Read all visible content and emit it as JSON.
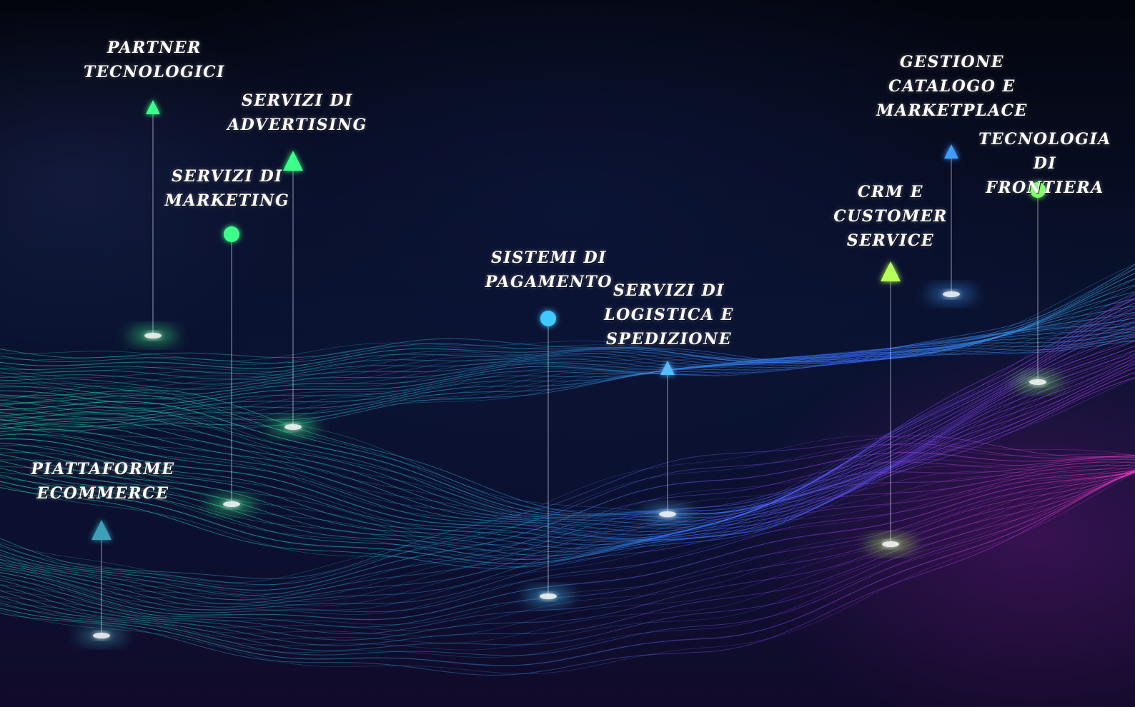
{
  "colors": {
    "green": "#3dff8a",
    "blue": "#3fb2ff",
    "lime": "#b6ff5a",
    "orange": "#ffb347",
    "magenta": "#c23cff",
    "teal": "#2ad6b8"
  },
  "markers": [
    {
      "key": "partner",
      "label": "PARTNER\nTECNOLOGICI",
      "icon": "arrow-up-icon",
      "color": "#3dff8a"
    },
    {
      "key": "advertising",
      "label": "SERVIZI DI\nADVERTISING",
      "icon": "arrow-up-icon",
      "color": "#3dff8a"
    },
    {
      "key": "marketing",
      "label": "SERVIZI DI\nMARKETING",
      "icon": "dot-icon",
      "color": "#3dff8a"
    },
    {
      "key": "ecommerce",
      "label": "PIATTAFORME\nECOMMERCE",
      "icon": "arrow-up-icon",
      "color": "#3aa0b8"
    },
    {
      "key": "pagamento",
      "label": "SISTEMI DI\nPAGAMENTO",
      "icon": "dot-icon",
      "color": "#3fc8ff"
    },
    {
      "key": "logistica",
      "label": "SERVIZI DI\nLOGISTICA E\nSPEDIZIONE",
      "icon": "arrow-up-icon",
      "color": "#5ab8ff"
    },
    {
      "key": "crm",
      "label": "CRM E\nCUSTOMER\nSERVICE",
      "icon": "arrow-up-icon",
      "color": "#b6ff5a"
    },
    {
      "key": "catalogo",
      "label": "GESTIONE\nCATALOGO E\nMARKETPLACE",
      "icon": "arrow-up-icon",
      "color": "#3f9dff"
    },
    {
      "key": "frontiera",
      "label": "TECNOLOGIA DI\nFRONTIERA",
      "icon": "dot-icon",
      "color": "#7dff6a"
    }
  ]
}
